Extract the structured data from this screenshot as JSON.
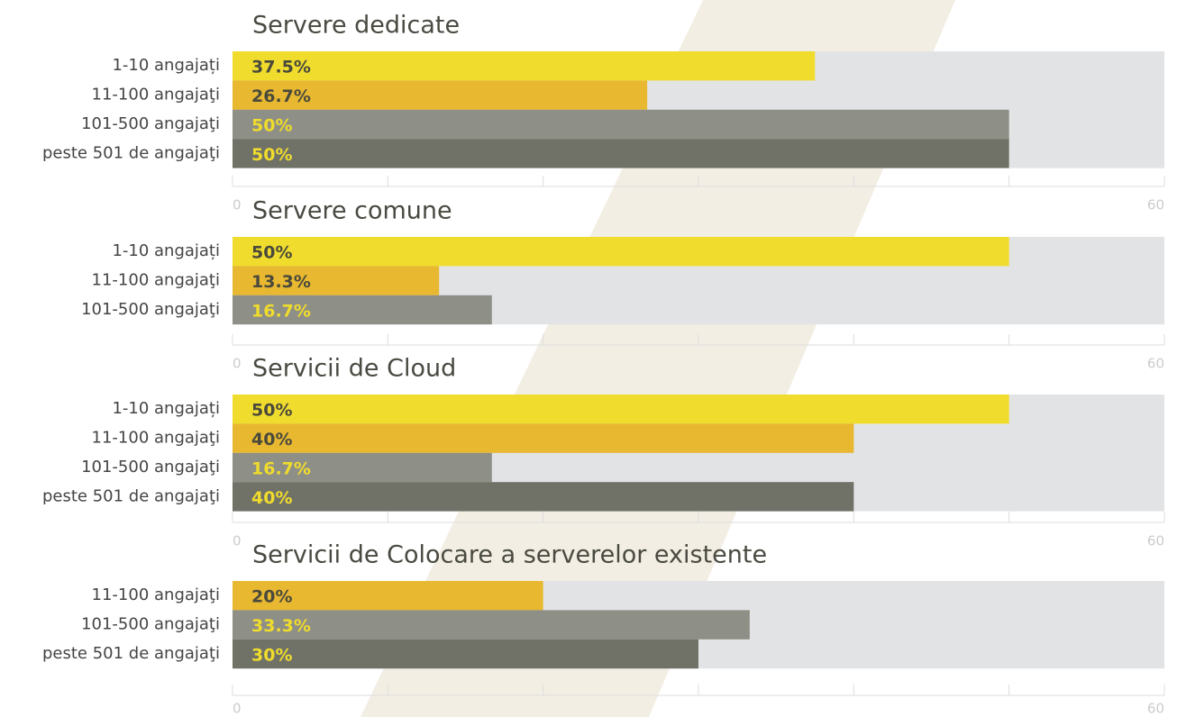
{
  "chart_data": [
    {
      "type": "bar",
      "orientation": "horizontal",
      "title": "Servere dedicate",
      "categories": [
        "1-10 angajați",
        "11-100 angajaţi",
        "101-500 angajaţi",
        "peste 501 de angajaţi"
      ],
      "values": [
        37.5,
        26.7,
        50,
        50
      ],
      "value_labels": [
        "37.5%",
        "26.7%",
        "50%",
        "50%"
      ],
      "colors": [
        "#f0dc2c",
        "#e8b830",
        "#8e8f86",
        "#707268"
      ],
      "label_colors": [
        "#4a4a3c",
        "#4a4a3c",
        "#f0dc2c",
        "#f0dc2c"
      ],
      "xlim": [
        0,
        60
      ],
      "xticks": [
        0,
        60
      ],
      "minor_xticks": [
        10,
        20,
        30,
        40,
        50
      ]
    },
    {
      "type": "bar",
      "orientation": "horizontal",
      "title": "Servere comune",
      "categories": [
        "1-10 angajați",
        "11-100 angajaţi",
        "101-500 angajaţi"
      ],
      "values": [
        50,
        13.3,
        16.7
      ],
      "value_labels": [
        "50%",
        "13.3%",
        "16.7%"
      ],
      "colors": [
        "#f0dc2c",
        "#e8b830",
        "#8e8f86"
      ],
      "label_colors": [
        "#4a4a3c",
        "#4a4a3c",
        "#f0dc2c"
      ],
      "xlim": [
        0,
        60
      ],
      "xticks": [
        0,
        60
      ],
      "minor_xticks": [
        10,
        20,
        30,
        40,
        50
      ]
    },
    {
      "type": "bar",
      "orientation": "horizontal",
      "title": "Servicii de Cloud",
      "categories": [
        "1-10 angajați",
        "11-100 angajaţi",
        "101-500 angajaţi",
        "peste 501 de angajaţi"
      ],
      "values": [
        50,
        40,
        16.7,
        40
      ],
      "value_labels": [
        "50%",
        "40%",
        "16.7%",
        "40%"
      ],
      "colors": [
        "#f0dc2c",
        "#e8b830",
        "#8e8f86",
        "#707268"
      ],
      "label_colors": [
        "#4a4a3c",
        "#4a4a3c",
        "#f0dc2c",
        "#f0dc2c"
      ],
      "xlim": [
        0,
        60
      ],
      "xticks": [
        0,
        60
      ],
      "minor_xticks": [
        10,
        20,
        30,
        40,
        50
      ]
    },
    {
      "type": "bar",
      "orientation": "horizontal",
      "title": "Servicii de Colocare a serverelor existente",
      "categories": [
        "11-100 angajaţi",
        "101-500 angajaţi",
        "peste 501 de angajaţi"
      ],
      "values": [
        20,
        33.3,
        30
      ],
      "value_labels": [
        "20%",
        "33.3%",
        "30%"
      ],
      "colors": [
        "#e8b830",
        "#8e8f86",
        "#707268"
      ],
      "label_colors": [
        "#4a4a3c",
        "#f0dc2c",
        "#f0dc2c"
      ],
      "xlim": [
        0,
        60
      ],
      "xticks": [
        0,
        60
      ],
      "minor_xticks": [
        10,
        20,
        30,
        40,
        50
      ]
    }
  ]
}
